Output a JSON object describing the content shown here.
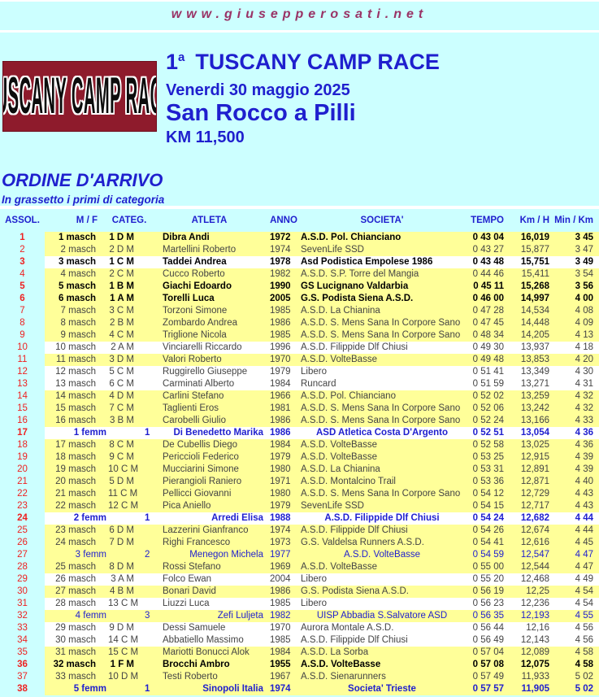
{
  "page": {
    "website": "www.giusepperosati.net"
  },
  "logo": {
    "text": "TUSCANY CAMP RACE"
  },
  "event": {
    "edition_number": "1",
    "edition_sup": "a",
    "title": "TUSCANY CAMP RACE",
    "date": "Venerdi 30 maggio 2025",
    "location": "San Rocco a Pilli",
    "distance": "KM 11,500"
  },
  "section": {
    "title": "ORDINE D'ARRIVO",
    "subtitle": "In grassetto i primi di categoria"
  },
  "colors": {
    "page_bg": "#ccffff",
    "row_yellow": "#ffff99",
    "row_white": "#ffffff",
    "blue": "#1f1fce",
    "red": "#ee2222",
    "maroon": "#993366",
    "logo_bg": "#8e1b2c"
  },
  "table": {
    "columns": [
      "ASSOL.",
      "M / F",
      "CATEG.",
      "ATLETA",
      "ANNO",
      "SOCIETA'",
      "TEMPO",
      "Km / H",
      "Min / Km"
    ],
    "fields": [
      "pos",
      "mf",
      "categ",
      "atleta",
      "anno",
      "societa",
      "tempo",
      "kmh",
      "minkm"
    ],
    "rows": [
      {
        "pos": "1",
        "mf": "1 masch",
        "categ": "1 D M",
        "atleta": "Dibra Andi",
        "anno": "1972",
        "societa": "A.S.D. Pol. Chianciano",
        "tempo": "0 43 04",
        "kmh": "16,019",
        "minkm": "3 45",
        "bold": true,
        "gender": "m",
        "bg": "y"
      },
      {
        "pos": "2",
        "mf": "2 masch",
        "categ": "2 D M",
        "atleta": "Martellini Roberto",
        "anno": "1974",
        "societa": "SevenLife SSD",
        "tempo": "0 43 27",
        "kmh": "15,877",
        "minkm": "3 47",
        "bold": false,
        "gender": "m",
        "bg": "y"
      },
      {
        "pos": "3",
        "mf": "3 masch",
        "categ": "1 C M",
        "atleta": "Taddei Andrea",
        "anno": "1978",
        "societa": "Asd Podistica Empolese 1986",
        "tempo": "0 43 48",
        "kmh": "15,751",
        "minkm": "3 49",
        "bold": true,
        "gender": "m",
        "bg": "w"
      },
      {
        "pos": "4",
        "mf": "4 masch",
        "categ": "2 C M",
        "atleta": "Cucco Roberto",
        "anno": "1982",
        "societa": "A.S.D. S.P. Torre del Mangia",
        "tempo": "0 44 46",
        "kmh": "15,411",
        "minkm": "3 54",
        "bold": false,
        "gender": "m",
        "bg": "y"
      },
      {
        "pos": "5",
        "mf": "5 masch",
        "categ": "1 B M",
        "atleta": "Giachi Edoardo",
        "anno": "1990",
        "societa": "GS Lucignano Valdarbia",
        "tempo": "0 45 11",
        "kmh": "15,268",
        "minkm": "3 56",
        "bold": true,
        "gender": "m",
        "bg": "y"
      },
      {
        "pos": "6",
        "mf": "6 masch",
        "categ": "1 A M",
        "atleta": "Torelli Luca",
        "anno": "2005",
        "societa": "G.S. Podista Siena A.S.D.",
        "tempo": "0 46 00",
        "kmh": "14,997",
        "minkm": "4 00",
        "bold": true,
        "gender": "m",
        "bg": "y"
      },
      {
        "pos": "7",
        "mf": "7 masch",
        "categ": "3 C M",
        "atleta": "Torzoni Simone",
        "anno": "1985",
        "societa": "A.S.D. La Chianina",
        "tempo": "0 47 28",
        "kmh": "14,534",
        "minkm": "4 08",
        "bold": false,
        "gender": "m",
        "bg": "y"
      },
      {
        "pos": "8",
        "mf": "8 masch",
        "categ": "2 B M",
        "atleta": "Zombardo Andrea",
        "anno": "1986",
        "societa": "A.S.D. S. Mens Sana In Corpore Sano",
        "tempo": "0 47 45",
        "kmh": "14,448",
        "minkm": "4 09",
        "bold": false,
        "gender": "m",
        "bg": "y"
      },
      {
        "pos": "9",
        "mf": "9 masch",
        "categ": "4 C M",
        "atleta": "Triglione Nicola",
        "anno": "1985",
        "societa": "A.S.D. S. Mens Sana In Corpore Sano",
        "tempo": "0 48 34",
        "kmh": "14,205",
        "minkm": "4 13",
        "bold": false,
        "gender": "m",
        "bg": "y"
      },
      {
        "pos": "10",
        "mf": "10 masch",
        "categ": "2 A M",
        "atleta": "Vinciarelli Riccardo",
        "anno": "1996",
        "societa": "A.S.D. Filippide Dlf Chiusi",
        "tempo": "0 49 30",
        "kmh": "13,937",
        "minkm": "4 18",
        "bold": false,
        "gender": "m",
        "bg": "w"
      },
      {
        "pos": "11",
        "mf": "11 masch",
        "categ": "3 D M",
        "atleta": "Valori Roberto",
        "anno": "1970",
        "societa": "A.S.D. VolteBasse",
        "tempo": "0 49 48",
        "kmh": "13,853",
        "minkm": "4 20",
        "bold": false,
        "gender": "m",
        "bg": "y"
      },
      {
        "pos": "12",
        "mf": "12 masch",
        "categ": "5 C M",
        "atleta": "Ruggirello Giuseppe",
        "anno": "1979",
        "societa": "Libero",
        "tempo": "0 51 41",
        "kmh": "13,349",
        "minkm": "4 30",
        "bold": false,
        "gender": "m",
        "bg": "w"
      },
      {
        "pos": "13",
        "mf": "13 masch",
        "categ": "6 C M",
        "atleta": "Carminati Alberto",
        "anno": "1984",
        "societa": "Runcard",
        "tempo": "0 51 59",
        "kmh": "13,271",
        "minkm": "4 31",
        "bold": false,
        "gender": "m",
        "bg": "w"
      },
      {
        "pos": "14",
        "mf": "14 masch",
        "categ": "4 D M",
        "atleta": "Carlini Stefano",
        "anno": "1966",
        "societa": "A.S.D. Pol. Chianciano",
        "tempo": "0 52 02",
        "kmh": "13,259",
        "minkm": "4 32",
        "bold": false,
        "gender": "m",
        "bg": "y"
      },
      {
        "pos": "15",
        "mf": "15 masch",
        "categ": "7 C M",
        "atleta": "Taglienti Eros",
        "anno": "1981",
        "societa": "A.S.D. S. Mens Sana In Corpore Sano",
        "tempo": "0 52 06",
        "kmh": "13,242",
        "minkm": "4 32",
        "bold": false,
        "gender": "m",
        "bg": "y"
      },
      {
        "pos": "16",
        "mf": "16 masch",
        "categ": "3 B M",
        "atleta": "Carobelli Giulio",
        "anno": "1986",
        "societa": "A.S.D. S. Mens Sana In Corpore Sano",
        "tempo": "0 52 24",
        "kmh": "13,166",
        "minkm": "4 33",
        "bold": false,
        "gender": "m",
        "bg": "y"
      },
      {
        "pos": "17",
        "mf": "1 femm",
        "categ": "1 C F",
        "atleta": "Di Benedetto Marika",
        "anno": "1986",
        "societa": "ASD Atletica Costa D'Argento",
        "tempo": "0 52 51",
        "kmh": "13,054",
        "minkm": "4 36",
        "bold": true,
        "gender": "f",
        "bg": "w"
      },
      {
        "pos": "18",
        "mf": "17 masch",
        "categ": "8 C M",
        "atleta": "De Cubellis Diego",
        "anno": "1984",
        "societa": "A.S.D. VolteBasse",
        "tempo": "0 52 58",
        "kmh": "13,025",
        "minkm": "4 36",
        "bold": false,
        "gender": "m",
        "bg": "y"
      },
      {
        "pos": "19",
        "mf": "18 masch",
        "categ": "9 C M",
        "atleta": "Periccioli Federico",
        "anno": "1979",
        "societa": "A.S.D. VolteBasse",
        "tempo": "0 53 25",
        "kmh": "12,915",
        "minkm": "4 39",
        "bold": false,
        "gender": "m",
        "bg": "y"
      },
      {
        "pos": "20",
        "mf": "19 masch",
        "categ": "10 C M",
        "atleta": "Mucciarini Simone",
        "anno": "1980",
        "societa": "A.S.D. La Chianina",
        "tempo": "0 53 31",
        "kmh": "12,891",
        "minkm": "4 39",
        "bold": false,
        "gender": "m",
        "bg": "y"
      },
      {
        "pos": "21",
        "mf": "20 masch",
        "categ": "5 D M",
        "atleta": "Pierangioli Raniero",
        "anno": "1971",
        "societa": "A.S.D. Montalcino Trail",
        "tempo": "0 53 36",
        "kmh": "12,871",
        "minkm": "4 40",
        "bold": false,
        "gender": "m",
        "bg": "y"
      },
      {
        "pos": "22",
        "mf": "21 masch",
        "categ": "11 C M",
        "atleta": "Pellicci Giovanni",
        "anno": "1980",
        "societa": "A.S.D. S. Mens Sana In Corpore Sano",
        "tempo": "0 54 12",
        "kmh": "12,729",
        "minkm": "4 43",
        "bold": false,
        "gender": "m",
        "bg": "y"
      },
      {
        "pos": "23",
        "mf": "22 masch",
        "categ": "12 C M",
        "atleta": "Pica Aniello",
        "anno": "1979",
        "societa": "SevenLife SSD",
        "tempo": "0 54 15",
        "kmh": "12,717",
        "minkm": "4 43",
        "bold": false,
        "gender": "m",
        "bg": "y"
      },
      {
        "pos": "24",
        "mf": "2 femm",
        "categ": "1 B F",
        "atleta": "Arredi Elisa",
        "anno": "1988",
        "societa": "A.S.D. Filippide Dlf Chiusi",
        "tempo": "0 54 24",
        "kmh": "12,682",
        "minkm": "4 44",
        "bold": true,
        "gender": "f",
        "bg": "w"
      },
      {
        "pos": "25",
        "mf": "23 masch",
        "categ": "6 D M",
        "atleta": "Lazzerini Gianfranco",
        "anno": "1974",
        "societa": "A.S.D. Filippide Dlf Chiusi",
        "tempo": "0 54 26",
        "kmh": "12,674",
        "minkm": "4 44",
        "bold": false,
        "gender": "m",
        "bg": "y"
      },
      {
        "pos": "26",
        "mf": "24 masch",
        "categ": "7 D M",
        "atleta": "Righi Francesco",
        "anno": "1973",
        "societa": "G.S. Valdelsa Runners A.S.D.",
        "tempo": "0 54 41",
        "kmh": "12,616",
        "minkm": "4 45",
        "bold": false,
        "gender": "m",
        "bg": "y"
      },
      {
        "pos": "27",
        "mf": "3 femm",
        "categ": "2 C F",
        "atleta": "Menegon Michela",
        "anno": "1977",
        "societa": "A.S.D. VolteBasse",
        "tempo": "0 54 59",
        "kmh": "12,547",
        "minkm": "4 47",
        "bold": false,
        "gender": "f",
        "bg": "y"
      },
      {
        "pos": "28",
        "mf": "25 masch",
        "categ": "8 D M",
        "atleta": "Rossi Stefano",
        "anno": "1969",
        "societa": "A.S.D. VolteBasse",
        "tempo": "0 55 00",
        "kmh": "12,544",
        "minkm": "4 47",
        "bold": false,
        "gender": "m",
        "bg": "y"
      },
      {
        "pos": "29",
        "mf": "26 masch",
        "categ": "3 A M",
        "atleta": "Folco Ewan",
        "anno": "2004",
        "societa": "Libero",
        "tempo": "0 55 20",
        "kmh": "12,468",
        "minkm": "4 49",
        "bold": false,
        "gender": "m",
        "bg": "w"
      },
      {
        "pos": "30",
        "mf": "27 masch",
        "categ": "4 B M",
        "atleta": "Bonari David",
        "anno": "1986",
        "societa": "G.S. Podista Siena A.S.D.",
        "tempo": "0 56 19",
        "kmh": "12,25",
        "minkm": "4 54",
        "bold": false,
        "gender": "m",
        "bg": "y"
      },
      {
        "pos": "31",
        "mf": "28 masch",
        "categ": "13 C M",
        "atleta": "Liuzzi Luca",
        "anno": "1985",
        "societa": "Libero",
        "tempo": "0 56 23",
        "kmh": "12,236",
        "minkm": "4 54",
        "bold": false,
        "gender": "m",
        "bg": "w"
      },
      {
        "pos": "32",
        "mf": "4 femm",
        "categ": "3 C F",
        "atleta": "Zefi Luljeta",
        "anno": "1982",
        "societa": "UISP Abbadia S.Salvatore ASD",
        "tempo": "0 56 35",
        "kmh": "12,193",
        "minkm": "4 55",
        "bold": false,
        "gender": "f",
        "bg": "y"
      },
      {
        "pos": "33",
        "mf": "29 masch",
        "categ": "9 D M",
        "atleta": "Dessi Samuele",
        "anno": "1970",
        "societa": "Aurora Montale A.S.D.",
        "tempo": "0 56 44",
        "kmh": "12,16",
        "minkm": "4 56",
        "bold": false,
        "gender": "m",
        "bg": "w"
      },
      {
        "pos": "34",
        "mf": "30 masch",
        "categ": "14 C M",
        "atleta": "Abbatiello Massimo",
        "anno": "1985",
        "societa": "A.S.D. Filippide Dlf Chiusi",
        "tempo": "0 56 49",
        "kmh": "12,143",
        "minkm": "4 56",
        "bold": false,
        "gender": "m",
        "bg": "w"
      },
      {
        "pos": "35",
        "mf": "31 masch",
        "categ": "15 C M",
        "atleta": "Mariotti Bonucci Alok",
        "anno": "1984",
        "societa": "A.S.D. La Sorba",
        "tempo": "0 57 04",
        "kmh": "12,089",
        "minkm": "4 58",
        "bold": false,
        "gender": "m",
        "bg": "y"
      },
      {
        "pos": "36",
        "mf": "32 masch",
        "categ": "1 F M",
        "atleta": "Brocchi Ambro",
        "anno": "1955",
        "societa": "A.S.D. VolteBasse",
        "tempo": "0 57 08",
        "kmh": "12,075",
        "minkm": "4 58",
        "bold": true,
        "gender": "m",
        "bg": "y"
      },
      {
        "pos": "37",
        "mf": "33 masch",
        "categ": "10 D M",
        "atleta": "Testi Roberto",
        "anno": "1967",
        "societa": "A.S.D. Sienarunners",
        "tempo": "0 57 49",
        "kmh": "11,933",
        "minkm": "5 02",
        "bold": false,
        "gender": "m",
        "bg": "y"
      },
      {
        "pos": "38",
        "mf": "5 femm",
        "categ": "1 D F",
        "atleta": "Sinopoli Italia",
        "anno": "1974",
        "societa": "Societa' Trieste",
        "tempo": "0 57 57",
        "kmh": "11,905",
        "minkm": "5 02",
        "bold": true,
        "gender": "f",
        "bg": "y"
      }
    ]
  }
}
